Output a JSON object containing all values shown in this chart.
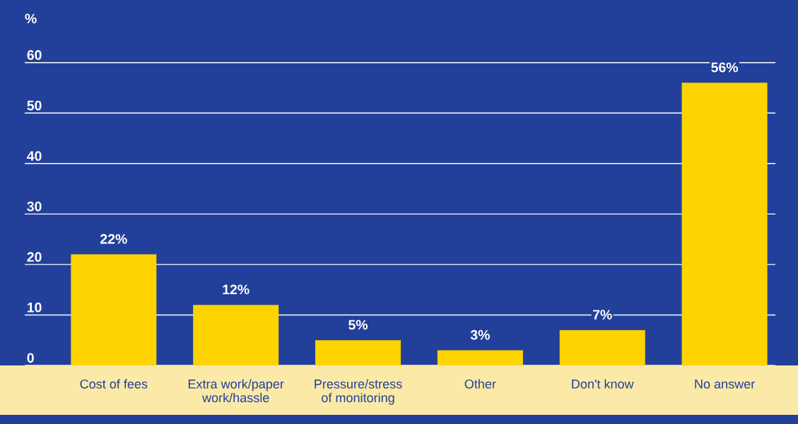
{
  "chart_data": {
    "type": "bar",
    "ylabel": "%",
    "categories": [
      "Cost of fees",
      "Extra work/paper\nwork/hassle",
      "Pressure/stress\nof monitoring",
      "Other",
      "Don't know",
      "No answer"
    ],
    "values": [
      22,
      12,
      5,
      3,
      7,
      56
    ],
    "value_labels": [
      "22%",
      "12%",
      "5%",
      "3%",
      "7%",
      "56%"
    ],
    "color": "#fdd300",
    "ylim": [
      0,
      72.4
    ],
    "yticks": [
      0,
      10,
      20,
      30,
      40,
      50,
      60
    ],
    "grid": "y"
  }
}
